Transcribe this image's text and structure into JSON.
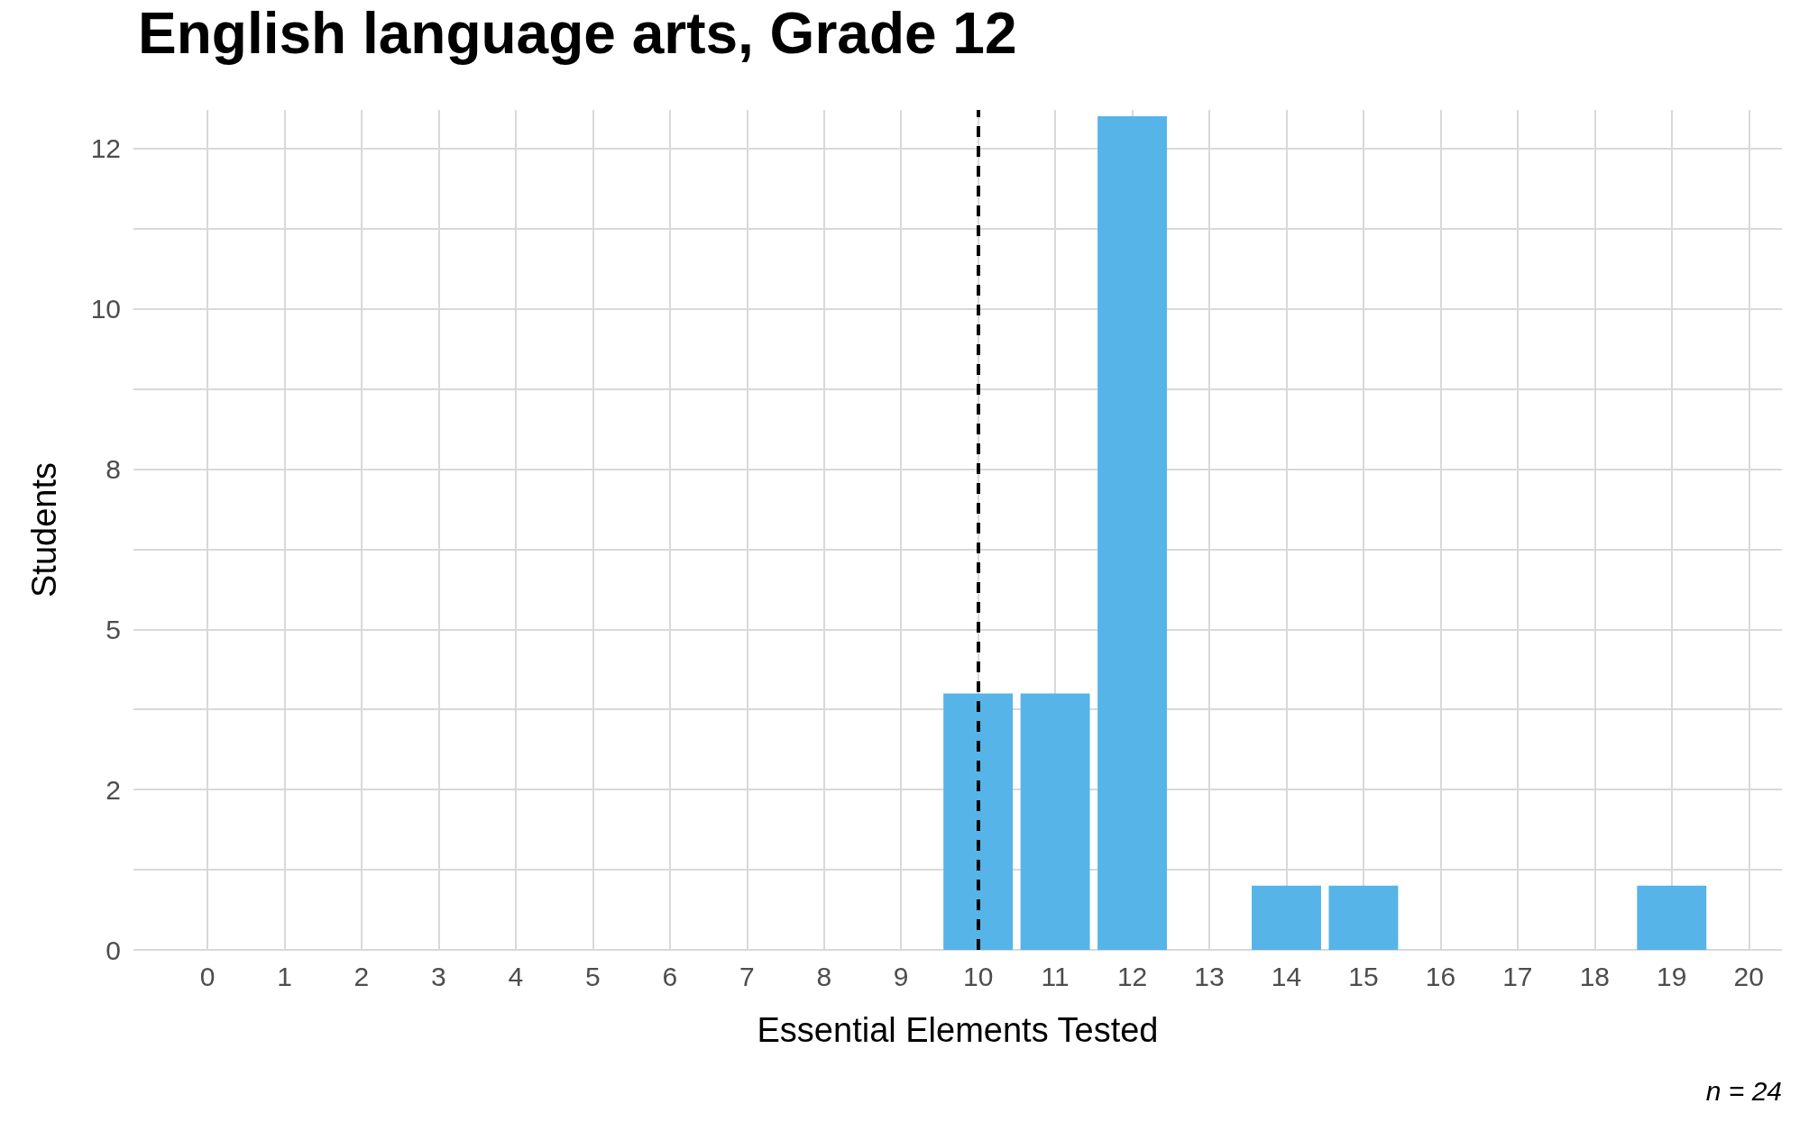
{
  "chart_data": {
    "type": "bar",
    "title": "English language arts, Grade 12",
    "xlabel": "Essential Elements Tested",
    "ylabel": "Students",
    "x": [
      10,
      11,
      12,
      14,
      15,
      19
    ],
    "values": [
      4,
      4,
      13,
      1,
      1,
      1
    ],
    "color": "#56b4e9",
    "xlim": [
      -0.96,
      20.43
    ],
    "xticks": [
      0,
      1,
      2,
      3,
      4,
      5,
      6,
      7,
      8,
      9,
      10,
      11,
      12,
      13,
      14,
      15,
      16,
      17,
      18,
      19,
      20
    ],
    "ylim": [
      0,
      13.1
    ],
    "yticks": [
      {
        "value": 0,
        "label": "0"
      },
      {
        "value": 1.25,
        "label": null
      },
      {
        "value": 2.5,
        "label": "2"
      },
      {
        "value": 3.75,
        "label": null
      },
      {
        "value": 5,
        "label": "5"
      },
      {
        "value": 6.25,
        "label": null
      },
      {
        "value": 7.5,
        "label": "8"
      },
      {
        "value": 8.75,
        "label": null
      },
      {
        "value": 10,
        "label": "10"
      },
      {
        "value": 11.25,
        "label": null
      },
      {
        "value": 12.5,
        "label": "12"
      }
    ],
    "grid": true,
    "ref_lines": [
      {
        "axis": "x",
        "value": 10,
        "color": "#000000",
        "line_style": "dashed"
      }
    ],
    "annotations": [
      "n = 24"
    ]
  }
}
